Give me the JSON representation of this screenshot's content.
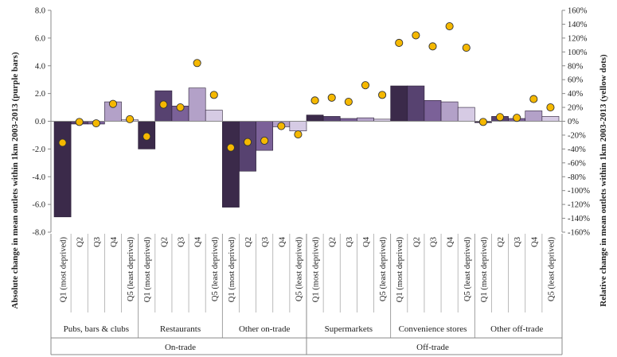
{
  "chart_data": {
    "type": "bar",
    "quintile_labels": [
      "Q1 (most deprived)",
      "Q2",
      "Q3",
      "Q4",
      "Q5 (least deprived)"
    ],
    "groups": [
      {
        "name": "Pubs, bars & clubs",
        "section": "On-trade",
        "bars": [
          -6.9,
          -0.2,
          -0.2,
          1.4,
          0.1
        ],
        "dots": [
          -31,
          -1,
          -3,
          25,
          3
        ]
      },
      {
        "name": "Restaurants",
        "section": "On-trade",
        "bars": [
          -2.0,
          2.2,
          1.1,
          2.4,
          0.8
        ],
        "dots": [
          -22,
          24,
          20,
          84,
          38
        ]
      },
      {
        "name": "Other on-trade",
        "section": "On-trade",
        "bars": [
          -6.2,
          -3.6,
          -2.1,
          -0.4,
          -0.7
        ],
        "dots": [
          -38,
          -30,
          -28,
          -7,
          -19
        ]
      },
      {
        "name": "Supermarkets",
        "section": "Off-trade",
        "bars": [
          0.45,
          0.35,
          0.2,
          0.25,
          0.15
        ],
        "dots": [
          30,
          34,
          28,
          52,
          38
        ]
      },
      {
        "name": "Convenience stores",
        "section": "Off-trade",
        "bars": [
          2.55,
          2.55,
          1.5,
          1.4,
          1.0
        ],
        "dots": [
          113,
          124,
          108,
          137,
          106
        ]
      },
      {
        "name": "Other off-trade",
        "section": "Off-trade",
        "bars": [
          -0.1,
          0.35,
          0.2,
          0.75,
          0.35
        ],
        "dots": [
          -1,
          6,
          5,
          32,
          20
        ]
      }
    ],
    "sections": [
      "On-trade",
      "Off-trade"
    ],
    "ylabel": "Absolute change in mean outlets within 1km 2003-2013 (purple bars)",
    "y2label": "Relative change in mean outlets within 1km 2003-2013 (yellow dots)",
    "ylim": [
      -8,
      8
    ],
    "y2lim": [
      -160,
      160
    ],
    "yticks": [
      "-8.0",
      "-6.0",
      "-4.0",
      "-2.0",
      "0.0",
      "2.0",
      "4.0",
      "6.0",
      "8.0"
    ],
    "y2ticks": [
      "-160%",
      "-140%",
      "-120%",
      "-100%",
      "-80%",
      "-60%",
      "-40%",
      "-20%",
      "0%",
      "20%",
      "40%",
      "60%",
      "80%",
      "100%",
      "120%",
      "140%",
      "160%"
    ],
    "colors": {
      "quintiles": [
        "#3b2a4a",
        "#574270",
        "#7b6198",
        "#b3a1c8",
        "#d6cbe4"
      ],
      "dot_fill": "#f5b800",
      "dot_stroke": "#333333"
    },
    "grid": false,
    "legend": "none"
  }
}
